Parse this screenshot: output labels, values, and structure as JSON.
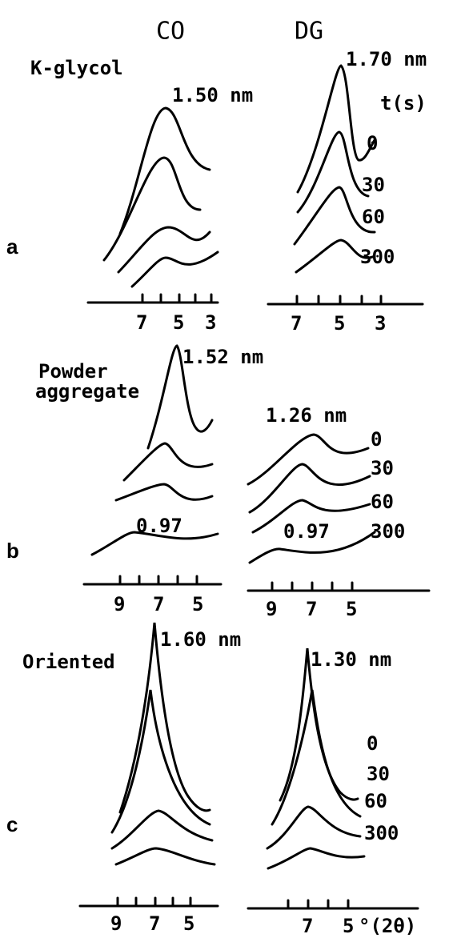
{
  "header": {
    "columns": [
      "CO",
      "DG"
    ]
  },
  "panels": [
    {
      "label": "a",
      "title": "K-glycol",
      "left_peak": "1.50 nm",
      "right_peak": "1.70 nm",
      "time_header": "t(s)",
      "times": [
        "0",
        "30",
        "60",
        "300"
      ],
      "left_ticks": [
        "7",
        "5",
        "3"
      ],
      "right_ticks": [
        "7",
        "5",
        "3"
      ]
    },
    {
      "label": "b",
      "title": [
        "Powder",
        "aggregate"
      ],
      "left_peak": "1.52 nm",
      "right_peak": "1.26 nm",
      "left_minor": "0.97",
      "right_minor": "0.97",
      "times": [
        "0",
        "30",
        "60",
        "300"
      ],
      "left_ticks": [
        "9",
        "7",
        "5"
      ],
      "right_ticks": [
        "9",
        "7",
        "5"
      ]
    },
    {
      "label": "c",
      "title": "Oriented",
      "left_peak": "1.60 nm",
      "right_peak": "1.30 nm",
      "times": [
        "0",
        "30",
        "60",
        "300"
      ],
      "left_ticks": [
        "9",
        "7",
        "5"
      ],
      "right_ticks": [
        "7",
        "5"
      ],
      "axis_unit": "°(2θ)"
    }
  ]
}
